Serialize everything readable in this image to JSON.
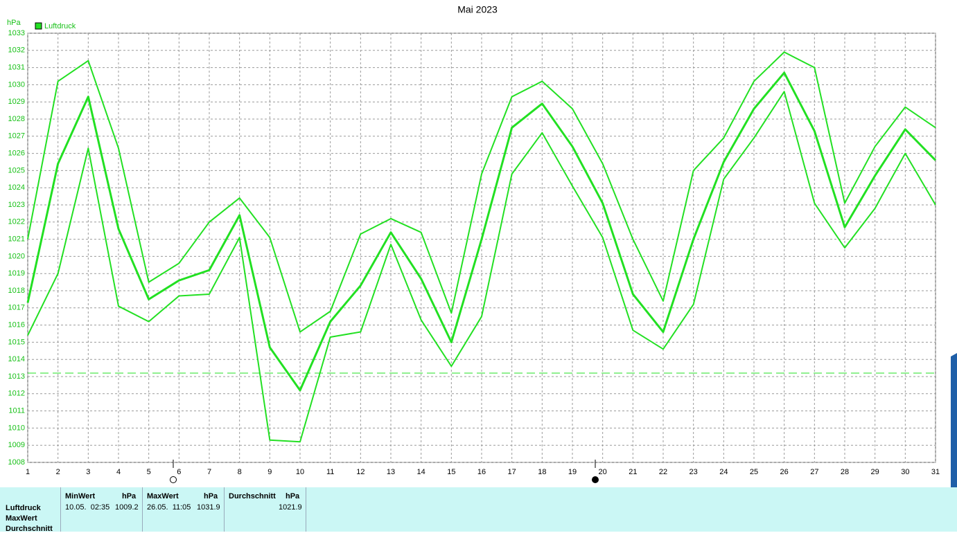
{
  "chart_data": {
    "type": "line",
    "title": "Mai 2023",
    "y_unit": "hPa",
    "x": [
      1,
      2,
      3,
      4,
      5,
      6,
      7,
      8,
      9,
      10,
      11,
      12,
      13,
      14,
      15,
      16,
      17,
      18,
      19,
      20,
      21,
      22,
      23,
      24,
      25,
      26,
      27,
      28,
      29,
      30,
      31
    ],
    "xlim": [
      1,
      31
    ],
    "xticks": [
      1,
      2,
      3,
      4,
      5,
      6,
      7,
      8,
      9,
      10,
      11,
      12,
      13,
      14,
      15,
      16,
      17,
      18,
      19,
      20,
      21,
      22,
      23,
      24,
      25,
      26,
      27,
      28,
      29,
      30,
      31
    ],
    "ylim": [
      1008,
      1033
    ],
    "yticks": [
      1008,
      1009,
      1010,
      1011,
      1012,
      1013,
      1014,
      1015,
      1016,
      1017,
      1018,
      1019,
      1020,
      1021,
      1022,
      1023,
      1024,
      1025,
      1026,
      1027,
      1028,
      1029,
      1030,
      1031,
      1032,
      1033
    ],
    "grid": true,
    "reference_line": 1013.2,
    "series": [
      {
        "name": "Luftdruck",
        "color": "#22e022",
        "width": 3,
        "values": [
          1017.3,
          1025.4,
          1029.3,
          1021.6,
          1017.5,
          1018.6,
          1019.2,
          1022.4,
          1014.7,
          1012.2,
          1016.2,
          1018.3,
          1021.4,
          1018.7,
          1015.0,
          1021.0,
          1027.5,
          1028.9,
          1026.4,
          1023.1,
          1017.8,
          1015.6,
          1021.0,
          1025.5,
          1028.6,
          1030.7,
          1027.3,
          1021.7,
          1024.7,
          1027.4,
          1025.6
        ]
      },
      {
        "color": "#22e022",
        "width": 2,
        "values": [
          1021.0,
          1030.2,
          1031.4,
          1026.3,
          1018.5,
          1019.6,
          1022.0,
          1023.4,
          1021.1,
          1015.6,
          1016.8,
          1021.3,
          1022.2,
          1021.4,
          1016.7,
          1024.8,
          1029.3,
          1030.2,
          1028.6,
          1025.4,
          1021.0,
          1017.4,
          1025.0,
          1026.9,
          1030.2,
          1031.9,
          1031.0,
          1023.1,
          1026.4,
          1028.7,
          1027.5
        ]
      },
      {
        "color": "#22e022",
        "width": 2,
        "values": [
          1015.4,
          1019.0,
          1026.3,
          1017.1,
          1016.2,
          1017.7,
          1017.8,
          1021.1,
          1009.3,
          1009.2,
          1015.3,
          1015.6,
          1020.7,
          1016.3,
          1013.6,
          1016.5,
          1024.8,
          1027.2,
          1024.1,
          1021.1,
          1015.7,
          1014.6,
          1017.2,
          1024.5,
          1026.9,
          1029.6,
          1023.1,
          1020.5,
          1022.8,
          1026.0,
          1023.0
        ]
      }
    ]
  },
  "stats": {
    "row_labels": [
      "Luftdruck",
      "MaxWert",
      "Durchschnitt"
    ],
    "columns": [
      {
        "header": "MinWert",
        "unit": "hPa",
        "time": "10.05.  02:35",
        "value": "1009.2"
      },
      {
        "header": "MaxWert",
        "unit": "hPa",
        "time": "26.05.  11:05",
        "value": "1031.9"
      },
      {
        "header": "Durchschnitt",
        "unit": "hPa",
        "value": "1021.9"
      }
    ]
  }
}
